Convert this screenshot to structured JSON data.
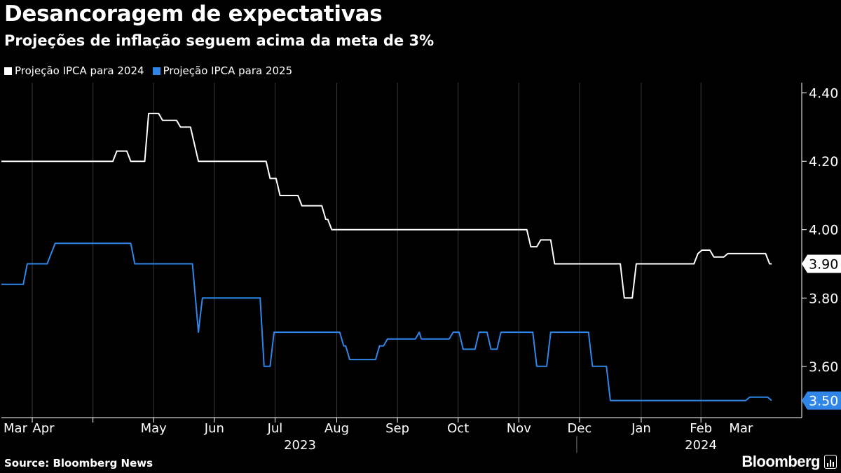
{
  "header": {
    "title": "Desancoragem de expectativas",
    "subtitle": "Projeções de inflação seguem acima da meta de 3%"
  },
  "footer": {
    "source": "Source: Bloomberg News",
    "brand": "Bloomberg"
  },
  "colors": {
    "background": "#000000",
    "series_2024": "#ffffff",
    "series_2025": "#2f86e8",
    "grid": "#3a3a3a"
  },
  "chart_data": {
    "type": "line",
    "title": "Desancoragem de expectativas",
    "subtitle": "Projeções de inflação seguem acima da meta de 3%",
    "xlabel": "",
    "ylabel": "",
    "x_range": [
      "2023-03-01",
      "2024-03-28"
    ],
    "ylim": [
      3.45,
      4.43
    ],
    "y_ticks": [
      3.6,
      3.8,
      4.0,
      4.2,
      4.4
    ],
    "y_tick_labels": [
      "3.60",
      "3.80",
      "4.00",
      "4.20",
      "4.40"
    ],
    "x_tick_labels": [
      {
        "date": "2023-03-01",
        "label": "Mar"
      },
      {
        "date": "2023-04-01",
        "label": "Apr"
      },
      {
        "date": "2023-05-01",
        "label": "May"
      },
      {
        "date": "2023-06-01",
        "label": "Jun"
      },
      {
        "date": "2023-07-01",
        "label": "Jul"
      },
      {
        "date": "2023-08-01",
        "label": "Aug"
      },
      {
        "date": "2023-09-01",
        "label": "Sep"
      },
      {
        "date": "2023-10-01",
        "label": "Oct"
      },
      {
        "date": "2023-11-01",
        "label": "Nov"
      },
      {
        "date": "2023-12-01",
        "label": "Dec"
      },
      {
        "date": "2024-01-01",
        "label": "Jan"
      },
      {
        "date": "2024-02-01",
        "label": "Feb"
      },
      {
        "date": "2024-03-01",
        "label": "Mar"
      }
    ],
    "year_labels": [
      {
        "date": "2023-07-15",
        "label": "2023"
      },
      {
        "date": "2024-02-15",
        "label": "2024"
      }
    ],
    "year_divider": "2024-01-01",
    "grid": true,
    "legend_position": "top-left",
    "series": [
      {
        "name": "Projeção IPCA para 2024",
        "color": "#ffffff",
        "last_label": "3.90",
        "points": [
          [
            "2023-03-01",
            4.2
          ],
          [
            "2023-04-26",
            4.2
          ],
          [
            "2023-04-28",
            4.23
          ],
          [
            "2023-05-03",
            4.23
          ],
          [
            "2023-05-05",
            4.2
          ],
          [
            "2023-05-12",
            4.2
          ],
          [
            "2023-05-14",
            4.34
          ],
          [
            "2023-05-19",
            4.34
          ],
          [
            "2023-05-21",
            4.32
          ],
          [
            "2023-05-28",
            4.32
          ],
          [
            "2023-05-30",
            4.3
          ],
          [
            "2023-06-04",
            4.3
          ],
          [
            "2023-06-08",
            4.2
          ],
          [
            "2023-07-12",
            4.2
          ],
          [
            "2023-07-14",
            4.15
          ],
          [
            "2023-07-17",
            4.15
          ],
          [
            "2023-07-19",
            4.1
          ],
          [
            "2023-07-28",
            4.1
          ],
          [
            "2023-07-30",
            4.07
          ],
          [
            "2023-08-09",
            4.07
          ],
          [
            "2023-08-11",
            4.03
          ],
          [
            "2023-08-12",
            4.03
          ],
          [
            "2023-08-14",
            4.0
          ],
          [
            "2023-11-20",
            4.0
          ],
          [
            "2023-11-22",
            3.95
          ],
          [
            "2023-11-25",
            3.95
          ],
          [
            "2023-11-27",
            3.97
          ],
          [
            "2023-12-02",
            3.97
          ],
          [
            "2023-12-04",
            3.9
          ],
          [
            "2024-01-06",
            3.9
          ],
          [
            "2024-01-08",
            3.8
          ],
          [
            "2024-01-12",
            3.8
          ],
          [
            "2024-01-14",
            3.9
          ],
          [
            "2024-02-12",
            3.9
          ],
          [
            "2024-02-14",
            3.93
          ],
          [
            "2024-02-16",
            3.94
          ],
          [
            "2024-02-20",
            3.94
          ],
          [
            "2024-02-22",
            3.92
          ],
          [
            "2024-02-27",
            3.92
          ],
          [
            "2024-02-29",
            3.93
          ],
          [
            "2024-03-19",
            3.93
          ],
          [
            "2024-03-21",
            3.9
          ],
          [
            "2024-03-22",
            3.9
          ]
        ]
      },
      {
        "name": "Projeção IPCA para 2025",
        "color": "#2f86e8",
        "last_label": "3.50",
        "points": [
          [
            "2023-03-01",
            3.84
          ],
          [
            "2023-03-12",
            3.84
          ],
          [
            "2023-03-14",
            3.9
          ],
          [
            "2023-03-24",
            3.9
          ],
          [
            "2023-03-28",
            3.96
          ],
          [
            "2023-05-05",
            3.96
          ],
          [
            "2023-05-07",
            3.9
          ],
          [
            "2023-06-05",
            3.9
          ],
          [
            "2023-06-08",
            3.7
          ],
          [
            "2023-06-10",
            3.8
          ],
          [
            "2023-07-09",
            3.8
          ],
          [
            "2023-07-11",
            3.6
          ],
          [
            "2023-07-14",
            3.6
          ],
          [
            "2023-07-16",
            3.7
          ],
          [
            "2023-08-18",
            3.7
          ],
          [
            "2023-08-20",
            3.66
          ],
          [
            "2023-08-21",
            3.66
          ],
          [
            "2023-08-23",
            3.62
          ],
          [
            "2023-09-05",
            3.62
          ],
          [
            "2023-09-07",
            3.66
          ],
          [
            "2023-09-09",
            3.66
          ],
          [
            "2023-09-11",
            3.68
          ],
          [
            "2023-09-25",
            3.68
          ],
          [
            "2023-09-27",
            3.7
          ],
          [
            "2023-09-28",
            3.68
          ],
          [
            "2023-10-12",
            3.68
          ],
          [
            "2023-10-14",
            3.7
          ],
          [
            "2023-10-17",
            3.7
          ],
          [
            "2023-10-19",
            3.65
          ],
          [
            "2023-10-25",
            3.65
          ],
          [
            "2023-10-27",
            3.7
          ],
          [
            "2023-10-31",
            3.7
          ],
          [
            "2023-11-02",
            3.65
          ],
          [
            "2023-11-05",
            3.65
          ],
          [
            "2023-11-07",
            3.7
          ],
          [
            "2023-11-23",
            3.7
          ],
          [
            "2023-11-25",
            3.6
          ],
          [
            "2023-11-30",
            3.6
          ],
          [
            "2023-12-02",
            3.7
          ],
          [
            "2023-12-21",
            3.7
          ],
          [
            "2023-12-23",
            3.6
          ],
          [
            "2023-12-30",
            3.6
          ],
          [
            "2024-01-01",
            3.5
          ],
          [
            "2024-03-09",
            3.5
          ],
          [
            "2024-03-11",
            3.51
          ],
          [
            "2024-03-20",
            3.51
          ],
          [
            "2024-03-22",
            3.5
          ]
        ]
      }
    ]
  }
}
